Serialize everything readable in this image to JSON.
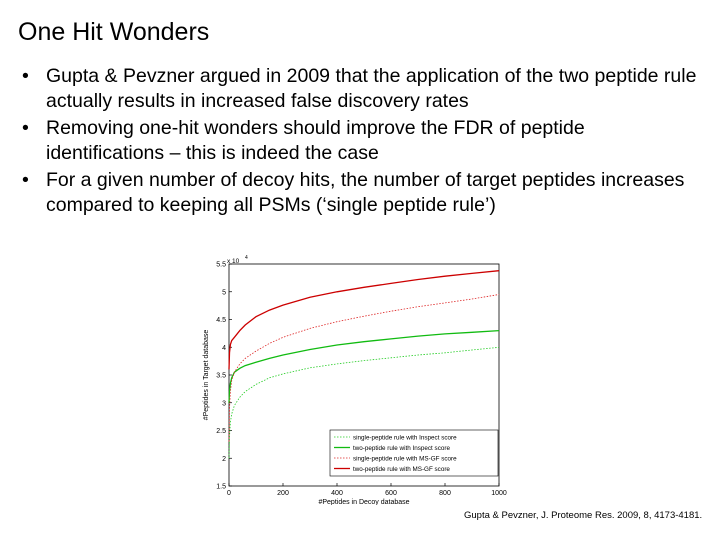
{
  "slide": {
    "title": "One Hit Wonders",
    "bullets": [
      "Gupta & Pevzner argued in 2009 that the application of the two peptide rule actually results in increased false discovery rates",
      "Removing one-hit wonders should improve the FDR of peptide identifications – this is indeed the case",
      "For a given number of decoy hits, the number of target peptides increases compared to keeping all PSMs (‘single peptide rule’)"
    ],
    "bullet_symbol": "•",
    "citation": "Gupta & Pevzner, J. Proteome Res. 2009, 8, 4173-4181."
  },
  "chart_data": {
    "type": "line",
    "title": "",
    "xlabel": "#Peptides in Decoy database",
    "ylabel": "#Peptides in Target database",
    "y_exponent_label": "x 10",
    "y_exponent_power": "4",
    "xlim": [
      0,
      1000
    ],
    "ylim": [
      1.5,
      5.5
    ],
    "xticks": [
      "0",
      "200",
      "400",
      "600",
      "800",
      "1000"
    ],
    "yticks": [
      "1.5",
      "2",
      "2.5",
      "3",
      "3.5",
      "4",
      "4.5",
      "5",
      "5.5"
    ],
    "grid": false,
    "legend_position": "bottom-right",
    "series": [
      {
        "name": "single-peptide rule with Inspect score",
        "color": "#22cc22",
        "dash": "dotted",
        "x": [
          0,
          2,
          5,
          10,
          20,
          40,
          60,
          100,
          150,
          200,
          300,
          400,
          500,
          600,
          700,
          800,
          900,
          1000
        ],
        "y": [
          2.0,
          2.4,
          2.65,
          2.8,
          2.95,
          3.1,
          3.2,
          3.33,
          3.45,
          3.52,
          3.63,
          3.7,
          3.76,
          3.81,
          3.86,
          3.9,
          3.95,
          4.0
        ]
      },
      {
        "name": "two-peptide rule with Inspect score",
        "color": "#11bb11",
        "dash": "solid",
        "x": [
          0,
          2,
          5,
          10,
          20,
          40,
          60,
          100,
          150,
          200,
          300,
          400,
          500,
          600,
          700,
          800,
          900,
          1000
        ],
        "y": [
          3.0,
          3.2,
          3.35,
          3.45,
          3.55,
          3.62,
          3.67,
          3.73,
          3.8,
          3.86,
          3.96,
          4.04,
          4.1,
          4.15,
          4.2,
          4.24,
          4.27,
          4.3
        ]
      },
      {
        "name": "single-peptide rule with MS-GF score",
        "color": "#dd2222",
        "dash": "dotted",
        "x": [
          0,
          2,
          5,
          10,
          20,
          40,
          60,
          100,
          150,
          200,
          300,
          400,
          500,
          600,
          700,
          800,
          900,
          1000
        ],
        "y": [
          2.3,
          2.9,
          3.2,
          3.4,
          3.55,
          3.7,
          3.8,
          3.93,
          4.07,
          4.18,
          4.34,
          4.46,
          4.56,
          4.65,
          4.73,
          4.8,
          4.87,
          4.95
        ]
      },
      {
        "name": "two-peptide rule with MS-GF score",
        "color": "#cc0000",
        "dash": "solid",
        "x": [
          0,
          2,
          5,
          10,
          20,
          40,
          60,
          100,
          150,
          200,
          300,
          400,
          500,
          600,
          700,
          800,
          900,
          1000
        ],
        "y": [
          3.6,
          3.9,
          4.05,
          4.12,
          4.18,
          4.3,
          4.4,
          4.55,
          4.67,
          4.76,
          4.9,
          5.0,
          5.08,
          5.15,
          5.22,
          5.28,
          5.33,
          5.38
        ]
      }
    ]
  }
}
